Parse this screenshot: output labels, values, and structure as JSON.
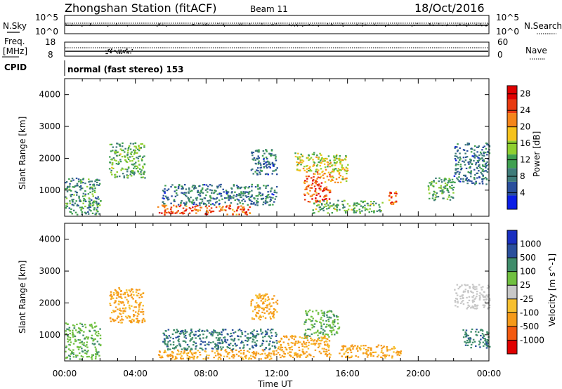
{
  "header": {
    "station": "Zhongshan Station (fitACF)",
    "beam": "Beam 11",
    "date": "18/Oct/2016"
  },
  "top_panels": {
    "nsky_label": "N.Sky",
    "nsearch_label": "N.Search",
    "y_top": "10^5",
    "y_bottom": "10^0",
    "freq_label_1": "Freq.",
    "freq_label_2": "[MHz]",
    "freq_ticks": [
      "18",
      "8"
    ],
    "nave_ticks": [
      "60",
      "0"
    ],
    "nave_label": "Nave",
    "cpid_label": "CPID",
    "cpid_text": "normal (fast stereo) 153"
  },
  "colors": {
    "power": [
      "#0b1ee6",
      "#2a4f9c",
      "#3f7c7a",
      "#40a050",
      "#8fcf2f",
      "#f5c21c",
      "#f5851a",
      "#e83a10",
      "#e00000"
    ],
    "velocity": [
      "#e00000",
      "#f35a10",
      "#f59a1a",
      "#f7c030",
      "#c8c8c8",
      "#70c040",
      "#3f8c6a",
      "#2a4f9c",
      "#1a2fc0"
    ]
  },
  "chart_data": [
    {
      "type": "heatmap",
      "title": "",
      "xlabel": "",
      "ylabel": "Slant Range [km]",
      "x_range_hours": [
        0,
        24
      ],
      "ylim": [
        180,
        4500
      ],
      "y_ticks": [
        1000,
        2000,
        3000,
        4000
      ],
      "colorbar": {
        "label": "Power [dB]",
        "range": [
          0,
          30
        ],
        "ticks": [
          4,
          8,
          12,
          16,
          20,
          24,
          28
        ]
      },
      "regions": [
        {
          "x": [
            0.0,
            2.0
          ],
          "y": [
            250,
            1400
          ],
          "value": 10
        },
        {
          "x": [
            2.5,
            4.5
          ],
          "y": [
            1400,
            2500
          ],
          "value": 12
        },
        {
          "x": [
            5.2,
            10.5
          ],
          "y": [
            250,
            550
          ],
          "value": 24
        },
        {
          "x": [
            5.5,
            12.0
          ],
          "y": [
            550,
            1200
          ],
          "value": 8
        },
        {
          "x": [
            10.5,
            12.0
          ],
          "y": [
            1500,
            2300
          ],
          "value": 8
        },
        {
          "x": [
            13.5,
            15.0
          ],
          "y": [
            650,
            1600
          ],
          "value": 24
        },
        {
          "x": [
            13.0,
            16.0
          ],
          "y": [
            1600,
            2200
          ],
          "value": 16
        },
        {
          "x": [
            15.0,
            16.0
          ],
          "y": [
            1250,
            1700
          ],
          "value": 18
        },
        {
          "x": [
            14.0,
            18.0
          ],
          "y": [
            300,
            700
          ],
          "value": 12
        },
        {
          "x": [
            18.3,
            18.8
          ],
          "y": [
            550,
            1000
          ],
          "value": 24
        },
        {
          "x": [
            20.5,
            22.0
          ],
          "y": [
            700,
            1400
          ],
          "value": 12
        },
        {
          "x": [
            22.0,
            24.0
          ],
          "y": [
            1200,
            2500
          ],
          "value": 8
        }
      ]
    },
    {
      "type": "heatmap",
      "title": "",
      "xlabel": "Time UT",
      "ylabel": "Slant Range [km]",
      "x_range_hours": [
        0,
        24
      ],
      "x_ticks": [
        "00:00",
        "04:00",
        "08:00",
        "12:00",
        "16:00",
        "20:00",
        "00:00"
      ],
      "ylim": [
        180,
        4500
      ],
      "y_ticks": [
        1000,
        2000,
        3000,
        4000
      ],
      "colorbar": {
        "label": "Velocity [m s^-1]",
        "ticks": [
          "1000",
          "500",
          "100",
          "25",
          "-25",
          "-100",
          "-500",
          "-1000"
        ]
      },
      "regions": [
        {
          "x": [
            0.0,
            2.0
          ],
          "y": [
            250,
            1400
          ],
          "value": 100
        },
        {
          "x": [
            2.5,
            4.5
          ],
          "y": [
            1400,
            2500
          ],
          "value": -100
        },
        {
          "x": [
            5.2,
            12.0
          ],
          "y": [
            250,
            550
          ],
          "value": -100
        },
        {
          "x": [
            5.5,
            12.0
          ],
          "y": [
            550,
            1200
          ],
          "value": 500
        },
        {
          "x": [
            10.5,
            12.0
          ],
          "y": [
            1500,
            2300
          ],
          "value": -100
        },
        {
          "x": [
            13.5,
            15.5
          ],
          "y": [
            900,
            1800
          ],
          "value": 100
        },
        {
          "x": [
            12.0,
            15.0
          ],
          "y": [
            300,
            1000
          ],
          "value": -100
        },
        {
          "x": [
            15.5,
            19.0
          ],
          "y": [
            300,
            700
          ],
          "value": -100
        },
        {
          "x": [
            22.0,
            24.0
          ],
          "y": [
            1800,
            2600
          ],
          "value": 0
        },
        {
          "x": [
            22.5,
            24.0
          ],
          "y": [
            600,
            1200
          ],
          "value": 500
        }
      ]
    }
  ]
}
